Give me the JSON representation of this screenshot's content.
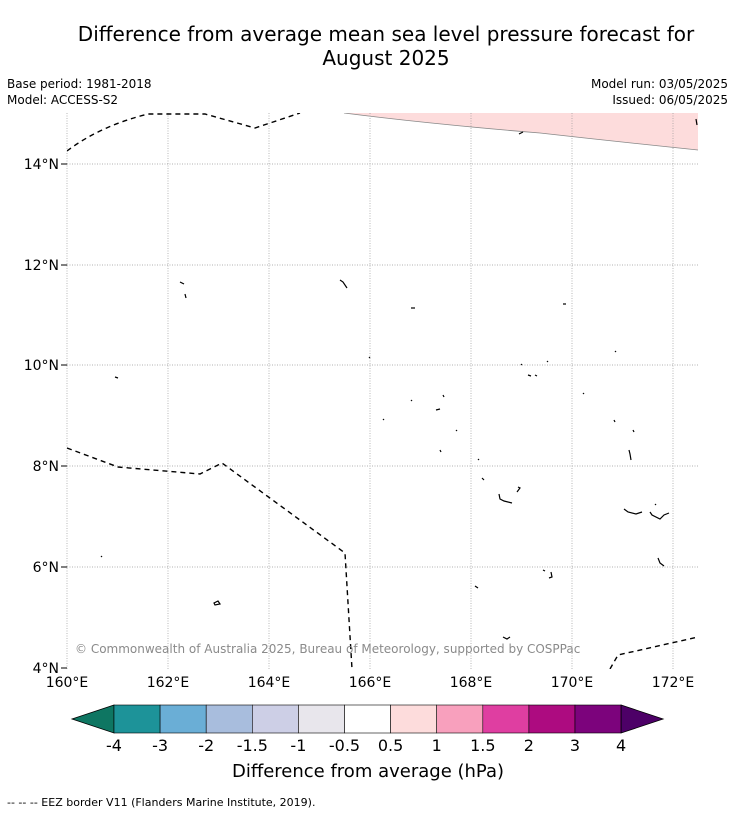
{
  "title_line1": "Difference from average mean sea level pressure forecast for",
  "title_line2": "August 2025",
  "meta": {
    "base_period": "Base period: 1981-2018",
    "model": "Model: ACCESS-S2",
    "model_run": "Model run: 03/05/2025",
    "issued": "Issued: 06/05/2025"
  },
  "map": {
    "lat_labels": [
      "14°N",
      "12°N",
      "10°N",
      "8°N",
      "6°N",
      "4°N"
    ],
    "lon_labels": [
      "160°E",
      "162°E",
      "164°E",
      "166°E",
      "168°E",
      "170°E",
      "172°E"
    ],
    "credit": "© Commonwealth of Australia 2025, Bureau of Meteorology, supported by COSPPac",
    "anomaly_region_color": "#fddcdc",
    "gridline_color": "#8c8c8c"
  },
  "colorbar": {
    "ticks": [
      "-4",
      "-3",
      "-2",
      "-1.5",
      "-1",
      "-0.5",
      "0.5",
      "1",
      "1.5",
      "2",
      "3",
      "4"
    ],
    "colors": [
      "#0e7662",
      "#1d9399",
      "#6aaed6",
      "#a8bddd",
      "#cdcfe6",
      "#e8e6ec",
      "#ffffff",
      "#fddcdc",
      "#f8a0bd",
      "#df3ea1",
      "#ad0b80",
      "#7c037c",
      "#4d0067"
    ],
    "label": "Difference from average (hPa)"
  },
  "legend_note": "-- -- -- EEZ border V11 (Flanders Marine Institute, 2019)."
}
